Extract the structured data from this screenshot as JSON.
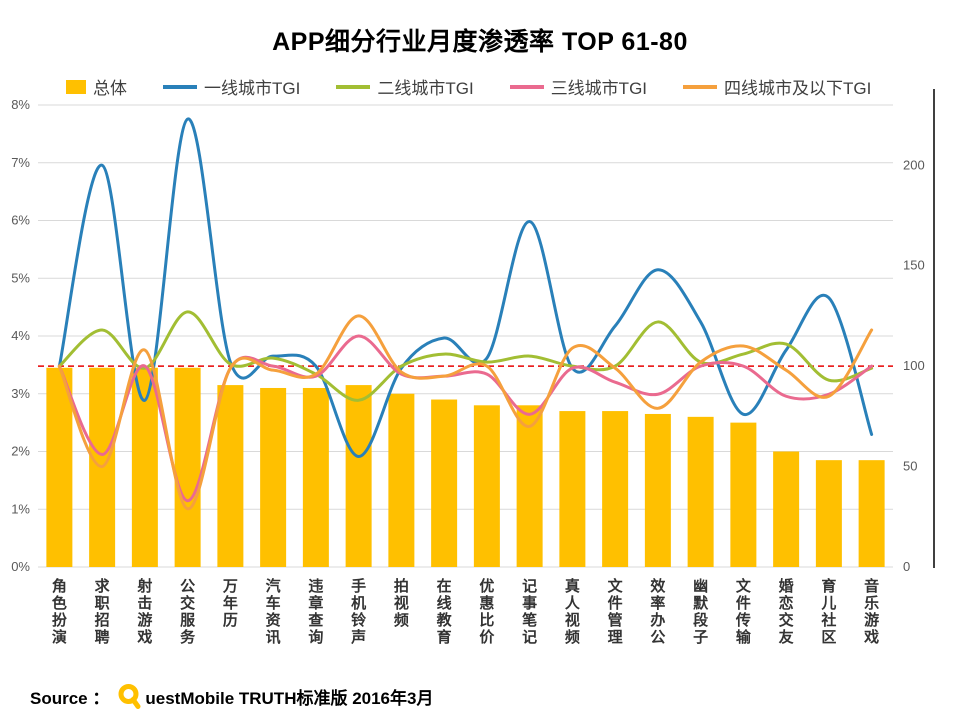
{
  "title": "APP细分行业月度渗透率 TOP 61-80",
  "legend": {
    "items": [
      {
        "label": "总体",
        "type": "bar",
        "color": "#FFC000"
      },
      {
        "label": "一线城市TGI",
        "type": "line",
        "color": "#2980B9"
      },
      {
        "label": "二线城市TGI",
        "type": "line",
        "color": "#A2BE33"
      },
      {
        "label": "三线城市TGI",
        "type": "line",
        "color": "#EA6A8F"
      },
      {
        "label": "四线城市及以下TGI",
        "type": "line",
        "color": "#F5A03D"
      }
    ]
  },
  "source": {
    "label": "Source ：",
    "brand_rest": "uestMobile TRUTH标准版 2016年3月",
    "full_text": "Source ： QuestMobile TRUTH标准版 2016年3月"
  },
  "colors": {
    "grid": "#D9D9D9",
    "axis_line": "#000000",
    "axis_text": "#595959",
    "category_text": "#333333",
    "background": "#FFFFFF"
  },
  "chart_data": {
    "type": "bar+line combo",
    "title": "APP细分行业月度渗透率 TOP 61-80",
    "xlabel": "",
    "ylabel_left": "月度渗透率",
    "ylabel_right": "TGI",
    "grid": "horizontal",
    "legend_position": "top",
    "categories": [
      "角色扮演",
      "求职招聘",
      "射击游戏",
      "公交服务",
      "万年历",
      "汽车资讯",
      "违章查询",
      "手机铃声",
      "拍视频",
      "在线教育",
      "优惠比价",
      "记事笔记",
      "真人视频",
      "文件管理",
      "效率办公",
      "幽默段子",
      "文件传输",
      "婚恋交友",
      "育儿社区",
      "音乐游戏"
    ],
    "bar_series": {
      "name": "总体",
      "axis": "left",
      "unit": "%",
      "color": "#FFC000",
      "values": [
        3.45,
        3.45,
        3.45,
        3.45,
        3.15,
        3.1,
        3.1,
        3.15,
        3.0,
        2.9,
        2.8,
        2.8,
        2.7,
        2.7,
        2.65,
        2.6,
        2.5,
        2.0,
        1.85,
        1.85
      ]
    },
    "line_series": [
      {
        "name": "一线城市TGI",
        "axis": "right",
        "color": "#2980B9",
        "values": [
          100,
          200,
          83,
          223,
          102,
          105,
          100,
          55,
          99,
          114,
          104,
          172,
          99,
          120,
          148,
          122,
          76,
          108,
          134,
          66
        ]
      },
      {
        "name": "二线城市TGI",
        "axis": "right",
        "color": "#A2BE33",
        "values": [
          100,
          118,
          99,
          127,
          101,
          104,
          96,
          83,
          100,
          106,
          102,
          105,
          100,
          100,
          122,
          102,
          106,
          111,
          93,
          99
        ]
      },
      {
        "name": "三线城市TGI",
        "axis": "right",
        "color": "#EA6A8F",
        "values": [
          100,
          56,
          100,
          33,
          99,
          100,
          95,
          115,
          96,
          95,
          96,
          76,
          99,
          92,
          86,
          100,
          100,
          85,
          86,
          100
        ]
      },
      {
        "name": "四线城市及以下TGI",
        "axis": "right",
        "color": "#F5A03D",
        "values": [
          100,
          50,
          108,
          29,
          99,
          98,
          96,
          125,
          97,
          95,
          100,
          70,
          109,
          99,
          79,
          102,
          110,
          98,
          85,
          118
        ]
      }
    ],
    "left_axis": {
      "min": 0,
      "max": 8,
      "tick_step": 1,
      "ticks": [
        "0%",
        "1%",
        "2%",
        "3%",
        "4%",
        "5%",
        "6%",
        "7%",
        "8%"
      ]
    },
    "right_axis": {
      "min": 0,
      "max": 230,
      "ticks": [
        0,
        50,
        100,
        150,
        200
      ]
    },
    "reference_line": {
      "axis": "right",
      "value": 100,
      "color": "#E60000",
      "style": "dashed"
    }
  }
}
